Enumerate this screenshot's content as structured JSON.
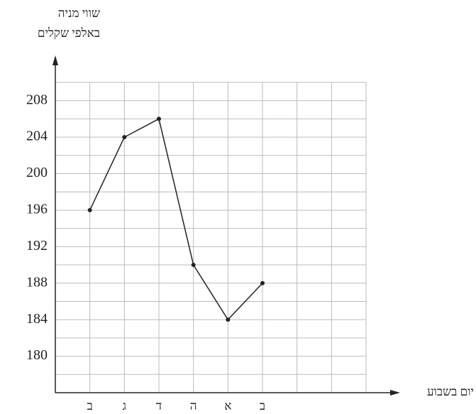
{
  "chart_data": {
    "type": "line",
    "ylabel_lines": [
      "שווי מניה",
      "באלפי שקלים"
    ],
    "xlabel": "יום בשבוע",
    "categories": [
      "ב",
      "ג",
      "ד",
      "ה",
      "א",
      "ב",
      null,
      null,
      null
    ],
    "values": [
      196,
      204,
      206,
      190,
      184,
      188,
      null,
      null,
      null
    ],
    "color": "#222222",
    "ylim": [
      176,
      210
    ],
    "yticks": [
      180,
      184,
      188,
      192,
      196,
      200,
      204,
      208
    ],
    "grid": true
  }
}
